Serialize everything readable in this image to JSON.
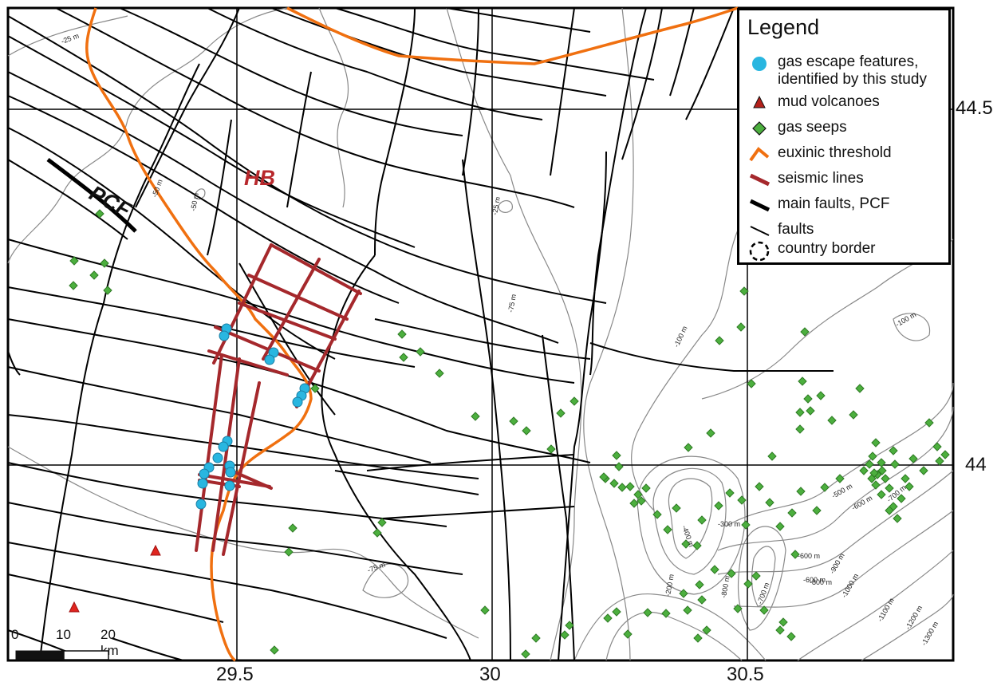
{
  "map": {
    "region_labels": {
      "pcf": "PCF",
      "hb": "HB"
    },
    "axes": {
      "x_labels": [
        "29.5",
        "30",
        "30.5"
      ],
      "y_labels": [
        "44.5",
        "44"
      ]
    },
    "contour_labels": [
      "-25 m",
      "-50 m",
      "-50 m",
      "-25 m",
      "-75 m",
      "-75 m",
      "-100 m",
      "-100 m",
      "-300 m",
      "-400 m",
      "-500 m",
      "-600 m",
      "-600 m",
      "-600 m",
      "-700 m",
      "-800 m",
      "-800 m",
      "-900 m",
      "-1000 m",
      "-1100 m",
      "-1200 m",
      "-1300 m",
      "-200 m",
      "-700 m"
    ],
    "scale": {
      "labels": [
        "0",
        "10",
        "20 km"
      ]
    },
    "colors": {
      "gas_escape": "#29b6e0",
      "mud_volcano": "#e0251f",
      "gas_seep": "#4caf3e",
      "euxinic": "#f07010",
      "seismic": "#a5282c",
      "faults": "#000000"
    }
  },
  "legend": {
    "title": "Legend",
    "items": [
      {
        "label_1": "gas escape features,",
        "label_2": "identified by this study",
        "symbol": "blue-circle"
      },
      {
        "label": "mud volcanoes",
        "symbol": "red-triangle"
      },
      {
        "label": "gas seeps",
        "symbol": "green-diamond"
      },
      {
        "label": "euxinic threshold",
        "symbol": "orange-line"
      },
      {
        "label": "seismic lines",
        "symbol": "red-line"
      },
      {
        "label": "main faults, PCF",
        "symbol": "thick-black-line"
      },
      {
        "label": "faults",
        "symbol": "thin-black-line"
      },
      {
        "label": "country border",
        "symbol": "dashed-circle"
      }
    ]
  }
}
